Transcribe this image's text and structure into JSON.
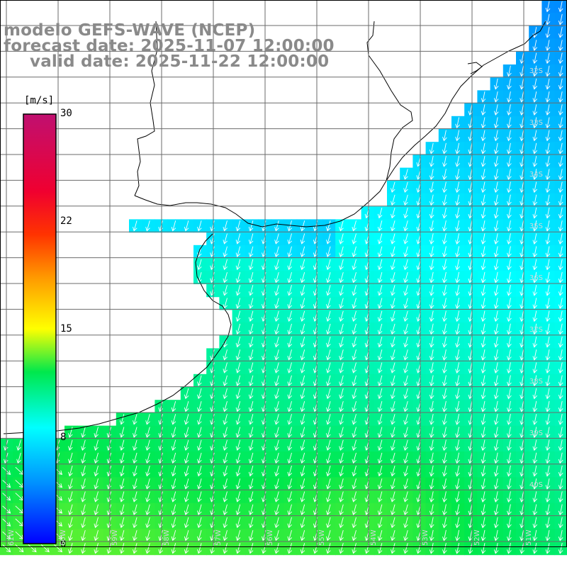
{
  "title": {
    "line1": "modelo GEFS-WAVE (NCEP)",
    "line2": "forecast date: 2025-11-07 12:00:00",
    "line3": "valid date: 2025-11-22 12:00:00"
  },
  "colorbar": {
    "unit": "[m/s]",
    "min": 0,
    "max": 30,
    "ticks": [
      "30",
      "22",
      "15",
      "8",
      "0"
    ]
  },
  "lat_labels": [
    "32S",
    "33S",
    "34S",
    "35S",
    "36S",
    "37S",
    "38S",
    "39S",
    "40S"
  ],
  "lon_labels": [
    "61W",
    "60W",
    "59W",
    "58W",
    "57W",
    "56W",
    "55W",
    "54W",
    "53W",
    "52W",
    "51W"
  ],
  "colors": {
    "land": "#ffffff",
    "grid": "#6b6b6b",
    "coast": "#000000",
    "arrow": "#ffffff",
    "title": "#8a8a8a"
  }
}
